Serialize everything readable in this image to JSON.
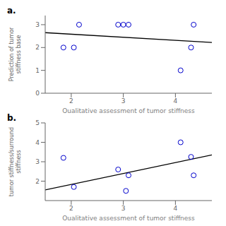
{
  "chart_data": [
    {
      "type": "scatter",
      "title": "a.",
      "x_label": "Qualitative assessment of tumor stiffness",
      "y_label": "Prediction of tumor stiffness base",
      "xlim": [
        1.5,
        4.7
      ],
      "ylim": [
        0,
        3.4
      ],
      "xticks": [
        2,
        3,
        4
      ],
      "yticks": [
        0,
        1,
        2,
        3
      ],
      "grid": false,
      "series": [
        {
          "type": "scatter",
          "color": "#0000CC",
          "marker": "circle",
          "x": [
            1.85,
            2.05,
            2.15,
            2.9,
            3.0,
            3.1,
            4.1,
            4.3,
            4.35
          ],
          "values": [
            2.0,
            2.0,
            3.0,
            3.0,
            3.0,
            3.0,
            1.0,
            2.0,
            3.0
          ]
        },
        {
          "type": "line",
          "color": "#000000",
          "line_style": "solid",
          "x": [
            1.5,
            4.7
          ],
          "values": [
            2.65,
            2.22
          ]
        }
      ]
    },
    {
      "type": "scatter",
      "title": "b.",
      "x_label": "Qualitative assessment of tumor stiffness",
      "y_label": "tumor stiffness/surround stiffness",
      "xlim": [
        1.5,
        4.7
      ],
      "ylim": [
        1,
        5
      ],
      "xticks": [
        2,
        3,
        4
      ],
      "yticks": [
        2,
        3,
        4,
        5
      ],
      "grid": false,
      "series": [
        {
          "type": "scatter",
          "color": "#0000CC",
          "marker": "circle",
          "x": [
            1.85,
            2.05,
            2.9,
            3.05,
            3.1,
            4.1,
            4.3,
            4.35
          ],
          "values": [
            3.2,
            1.7,
            2.6,
            1.5,
            2.3,
            4.0,
            3.25,
            2.3
          ]
        },
        {
          "type": "line",
          "color": "#000000",
          "line_style": "solid",
          "x": [
            1.5,
            4.7
          ],
          "values": [
            1.55,
            3.35
          ]
        }
      ]
    }
  ]
}
